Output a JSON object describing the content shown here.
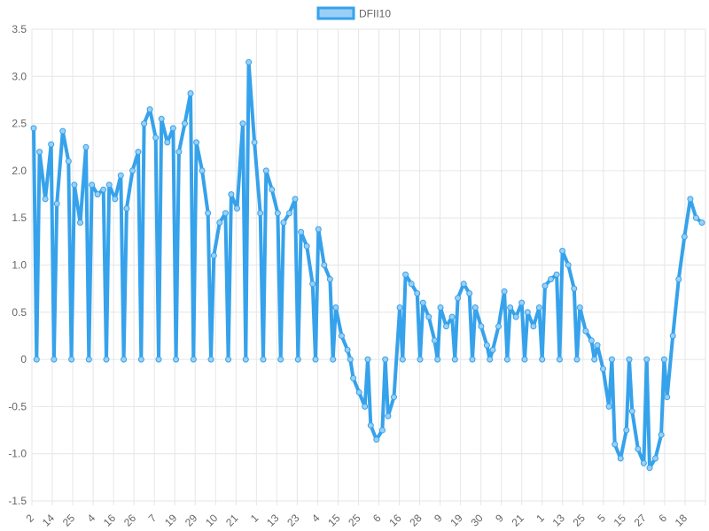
{
  "chart_data": {
    "type": "line",
    "title": "",
    "xlabel": "",
    "ylabel": "",
    "ylim": [
      -1.5,
      3.5
    ],
    "y_ticks": [
      "3.5",
      "3.0",
      "2.5",
      "2.0",
      "1.5",
      "1.0",
      "0.5",
      "0",
      "-0.5",
      "-1.0",
      "-1.5"
    ],
    "x_ticks": [
      "2",
      "14",
      "25",
      "4",
      "16",
      "26",
      "7",
      "19",
      "29",
      "10",
      "21",
      "1",
      "13",
      "23",
      "4",
      "15",
      "25",
      "6",
      "16",
      "28",
      "9",
      "19",
      "30",
      "9",
      "21",
      "1",
      "13",
      "25",
      "5",
      "15",
      "27",
      "6",
      "18"
    ],
    "grid": true,
    "legend_position": "top-center",
    "series": [
      {
        "name": "DFII10",
        "color": "#36a2eb",
        "fill_color": "#9ad0f5",
        "values": [
          2.45,
          2.2,
          1.7,
          2.28,
          1.65,
          2.42,
          2.1,
          1.85,
          1.45,
          2.25,
          1.85,
          1.75,
          1.8,
          1.85,
          1.7,
          1.95,
          1.6,
          2.0,
          2.2,
          2.5,
          2.65,
          2.35,
          2.55,
          2.3,
          2.45,
          2.2,
          2.5,
          2.82,
          2.3,
          2.0,
          1.55,
          1.1,
          1.45,
          1.55,
          1.75,
          1.6,
          2.5,
          3.15,
          2.3,
          1.55,
          2.0,
          1.8,
          1.55,
          1.45,
          1.55,
          1.7,
          1.35,
          1.2,
          0.8,
          1.38,
          1.0,
          0.85,
          0.55,
          0.25,
          0.1,
          -0.2,
          -0.35,
          -0.5,
          -0.7,
          -0.85,
          -0.75,
          -0.6,
          -0.4,
          0.55,
          0.9,
          0.8,
          0.7,
          0.6,
          0.45,
          0.2,
          0.55,
          0.35,
          0.45,
          0.65,
          0.8,
          0.7,
          0.55,
          0.35,
          0.15,
          0.1,
          0.35,
          0.72,
          0.55,
          0.45,
          0.6,
          0.5,
          0.35,
          0.55,
          0.78,
          0.85,
          0.9,
          1.15,
          1.0,
          0.75,
          0.55,
          0.3,
          0.2,
          0.15,
          -0.1,
          -0.5,
          -0.9,
          -1.05,
          -0.75,
          -0.55,
          -0.95,
          -1.1,
          -1.15,
          -1.05,
          -0.8,
          -0.4,
          0.25,
          0.85,
          1.3,
          1.7,
          1.5,
          1.45
        ],
        "zero_drops": [
          0,
          3,
          6,
          9,
          12,
          15,
          18,
          21,
          24,
          27,
          30,
          33,
          36,
          39,
          42,
          45,
          48,
          51,
          54,
          57,
          60,
          63,
          66,
          69,
          72,
          75,
          78,
          81,
          84,
          87,
          90,
          93,
          96,
          99,
          102,
          105,
          108
        ]
      }
    ]
  }
}
